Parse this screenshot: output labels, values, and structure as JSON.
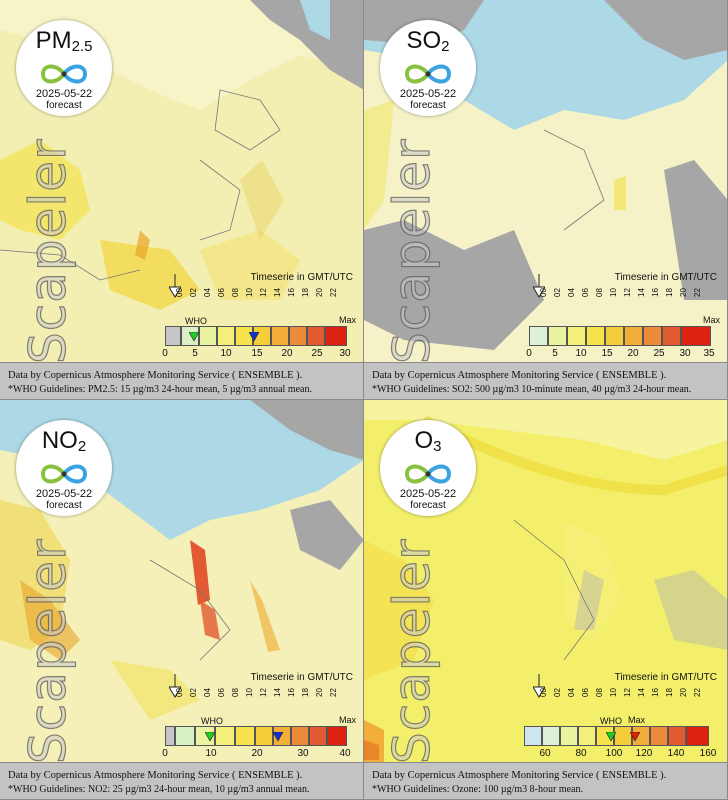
{
  "panels": [
    {
      "pollutant": "PM",
      "pollutant_sub": "2.5",
      "date": "2025-05-22",
      "forecast_label": "forecast",
      "watermark": "Scapeler",
      "timeserie_label": "Timeserie in GMT/UTC",
      "hour_ticks": [
        "00",
        "02",
        "04",
        "06",
        "08",
        "10",
        "12",
        "14",
        "16",
        "18",
        "20",
        "22"
      ],
      "who_label": "WHO",
      "max_label": "Max",
      "scale_values": [
        "0",
        "5",
        "10",
        "15",
        "20",
        "25",
        "30"
      ],
      "who_markers": [
        {
          "value": 5,
          "color": "#22cc22"
        },
        {
          "value": 15,
          "color": "#1133cc"
        }
      ],
      "attribution": "Data by Copernicus Atmosphere Monitoring Service ( ENSEMBLE ).",
      "guideline": "*WHO Guidelines: PM2.5: 15 µg/m3 24-hour mean, 5 µg/m3 annual mean."
    },
    {
      "pollutant": "SO",
      "pollutant_sub": "2",
      "date": "2025-05-22",
      "forecast_label": "forecast",
      "watermark": "Scapeler",
      "timeserie_label": "Timeserie in GMT/UTC",
      "hour_ticks": [
        "00",
        "02",
        "04",
        "06",
        "08",
        "10",
        "12",
        "14",
        "16",
        "18",
        "20",
        "22"
      ],
      "who_label": "",
      "max_label": "Max",
      "scale_values": [
        "0",
        "5",
        "10",
        "15",
        "20",
        "25",
        "30",
        "35"
      ],
      "who_markers": [],
      "attribution": "Data by Copernicus Atmosphere Monitoring Service ( ENSEMBLE ).",
      "guideline": "*WHO Guidelines: SO2: 500 µg/m3 10-minute mean, 40 µg/m3 24-hour mean."
    },
    {
      "pollutant": "NO",
      "pollutant_sub": "2",
      "date": "2025-05-22",
      "forecast_label": "forecast",
      "watermark": "Scapeler",
      "timeserie_label": "Timeserie in GMT/UTC",
      "hour_ticks": [
        "00",
        "02",
        "04",
        "06",
        "08",
        "10",
        "12",
        "14",
        "16",
        "18",
        "20",
        "22"
      ],
      "who_label": "WHO",
      "max_label": "Max",
      "scale_values": [
        "0",
        "10",
        "20",
        "30",
        "40"
      ],
      "who_markers": [
        {
          "value": 10,
          "color": "#22cc22"
        },
        {
          "value": 25,
          "color": "#1133cc"
        }
      ],
      "attribution": "Data by Copernicus Atmosphere Monitoring Service ( ENSEMBLE ).",
      "guideline": "*WHO Guidelines: NO2: 25 µg/m3 24-hour mean, 10 µg/m3 annual mean."
    },
    {
      "pollutant": "O",
      "pollutant_sub": "3",
      "date": "2025-05-22",
      "forecast_label": "forecast",
      "watermark": "Scapeler",
      "timeserie_label": "Timeserie in GMT/UTC",
      "hour_ticks": [
        "00",
        "02",
        "04",
        "06",
        "08",
        "10",
        "12",
        "14",
        "16",
        "18",
        "20",
        "22"
      ],
      "who_label": "WHO",
      "max_label": "Max",
      "scale_values": [
        "60",
        "80",
        "100",
        "120",
        "140",
        "160"
      ],
      "who_markers": [
        {
          "value": 100,
          "color": "#22cc22"
        },
        {
          "value": 112,
          "color": "#dd2200"
        }
      ],
      "attribution": "Data by Copernicus Atmosphere Monitoring Service ( ENSEMBLE ).",
      "guideline": "*WHO Guidelines: Ozone: 100 µg/m3 8-hour mean."
    }
  ],
  "colors": {
    "sea": "#add8e6",
    "land_grey": "#a6a6a6",
    "low": "#f7f4b5",
    "mid": "#f2e35a",
    "high": "#e8a32a",
    "hot": "#dd3311"
  }
}
